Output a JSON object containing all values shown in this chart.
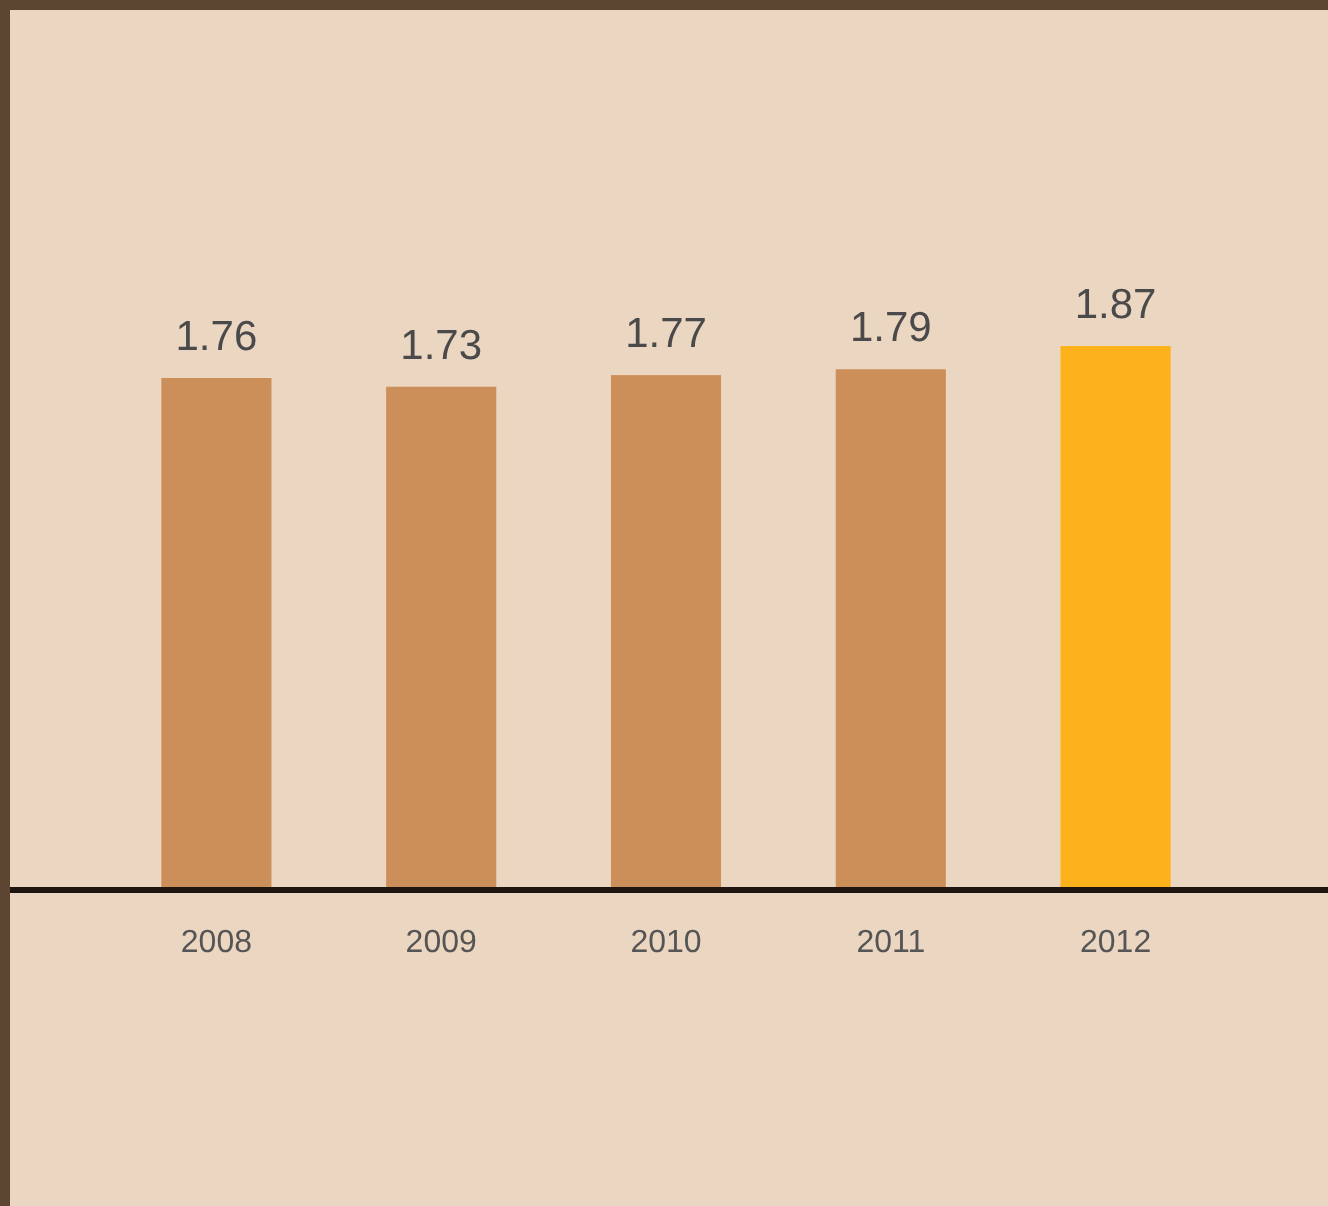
{
  "chart_data": {
    "type": "bar",
    "categories": [
      "2008",
      "2009",
      "2010",
      "2011",
      "2012"
    ],
    "values": [
      1.76,
      1.73,
      1.77,
      1.79,
      1.87
    ],
    "colors": [
      "#cd8f5a",
      "#cd8f5a",
      "#cd8f5a",
      "#cd8f5a",
      "#fdb11b"
    ],
    "data_labels": true
  }
}
